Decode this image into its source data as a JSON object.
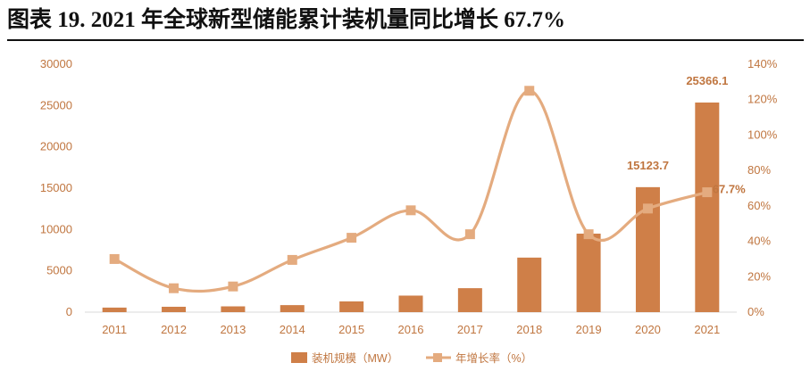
{
  "figure": {
    "title": "图表 19. 2021 年全球新型储能累计装机量同比增长 67.7%"
  },
  "colors": {
    "bar": "#cf7f48",
    "line": "#e4ab7f",
    "axis_text": "#c07640",
    "title": "#111111"
  },
  "chart_data": {
    "type": "bar",
    "categories": [
      "2011",
      "2012",
      "2013",
      "2014",
      "2015",
      "2016",
      "2017",
      "2018",
      "2019",
      "2020",
      "2021"
    ],
    "series": [
      {
        "name": "装机规模（MW）",
        "type": "bar",
        "axis": "left",
        "values": [
          550,
          650,
          700,
          850,
          1300,
          2000,
          2900,
          6600,
          9500,
          15123.7,
          25366.1
        ]
      },
      {
        "name": "年增长率（%）",
        "type": "line",
        "axis": "right",
        "values": [
          30,
          13.5,
          14.5,
          29.5,
          42,
          57.5,
          44,
          125,
          44,
          58.5,
          67.7
        ]
      }
    ],
    "y_left": {
      "ylim": [
        0,
        30000
      ],
      "ticks": [
        "0",
        "5000",
        "10000",
        "15000",
        "20000",
        "25000",
        "30000"
      ]
    },
    "y_right": {
      "ylim": [
        0,
        140
      ],
      "ticks": [
        "0%",
        "20%",
        "40%",
        "60%",
        "80%",
        "100%",
        "120%",
        "140%"
      ]
    },
    "data_labels": [
      {
        "series": 0,
        "index": 9,
        "text": "15123.7"
      },
      {
        "series": 0,
        "index": 10,
        "text": "25366.1"
      },
      {
        "series": 1,
        "index": 10,
        "text": "67.7%"
      }
    ],
    "grid": false,
    "legend_position": "bottom"
  }
}
